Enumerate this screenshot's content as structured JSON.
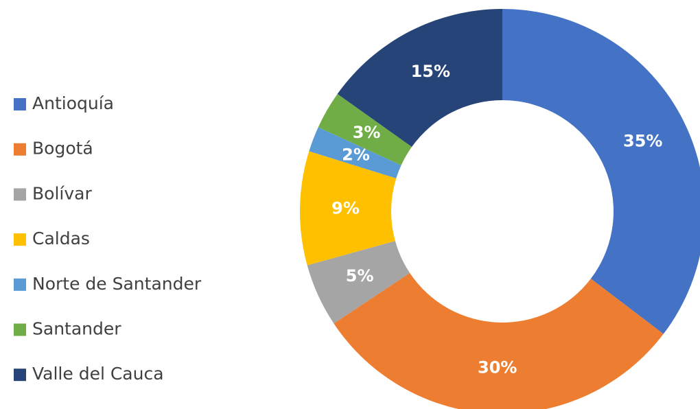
{
  "chart_data": {
    "type": "donut",
    "categories": [
      "Antioquía",
      "Bogotá",
      "Bolívar",
      "Caldas",
      "Norte de Santander",
      "Santander",
      "Valle del Cauca"
    ],
    "values": [
      35,
      30,
      5,
      9,
      2,
      3,
      15
    ],
    "value_labels": [
      "35%",
      "30%",
      "5%",
      "9%",
      "2%",
      "3%",
      "15%"
    ],
    "colors": [
      "#4472c4",
      "#ed7d31",
      "#a5a5a5",
      "#ffc000",
      "#5b9bd5",
      "#70ad47",
      "#264478"
    ],
    "legend": "left"
  }
}
